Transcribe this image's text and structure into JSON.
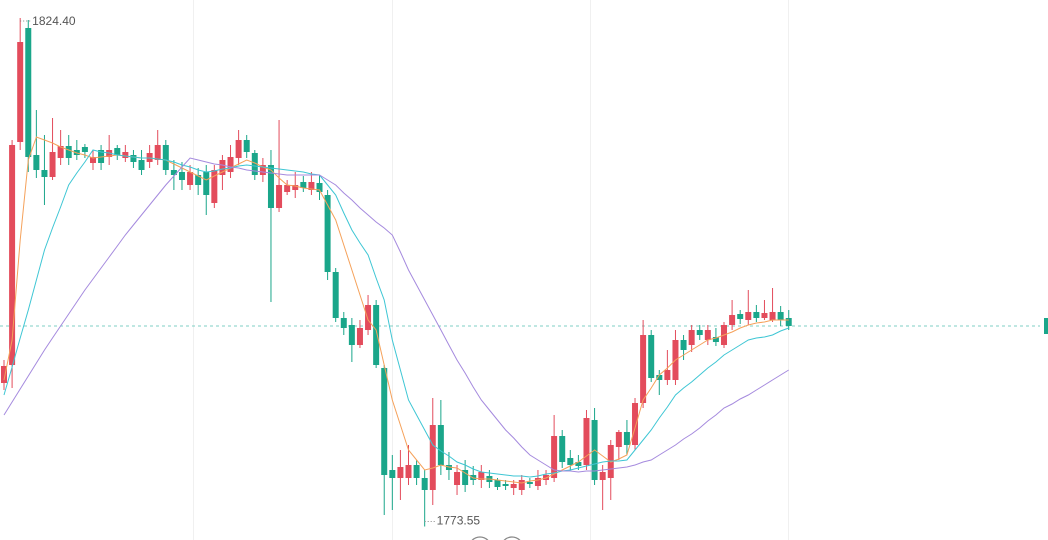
{
  "chart_data": {
    "type": "candlestick",
    "categories": [
      null,
      null,
      null,
      null,
      null,
      null,
      null,
      null,
      null,
      null,
      null,
      null,
      null,
      null,
      null,
      null,
      null,
      null,
      null,
      null,
      null,
      null,
      null,
      null,
      null,
      null,
      null,
      null,
      null,
      null,
      null,
      null,
      null,
      null,
      null,
      null,
      null,
      null,
      null,
      null,
      null,
      null,
      null,
      null,
      null,
      null,
      null,
      null,
      null,
      null,
      null,
      null,
      null,
      null,
      null,
      null,
      null,
      null,
      null,
      null,
      null,
      null,
      null,
      null,
      null,
      null,
      null,
      null,
      null,
      null,
      null,
      null,
      null,
      null,
      null,
      null,
      null,
      null,
      null,
      null,
      null,
      null,
      null,
      null,
      null,
      null,
      null,
      null,
      null,
      null,
      null,
      null,
      null,
      null,
      null,
      null,
      null,
      null
    ],
    "open": [
      1787.9,
      1789.7,
      1812.0,
      1823.4,
      1810.7,
      1809.2,
      1808.5,
      1810.4,
      1811.6,
      1811.2,
      1811.5,
      1809.9,
      1811.2,
      1810.5,
      1811.4,
      1810.4,
      1810.7,
      1810.2,
      1810.0,
      1810.2,
      1811.7,
      1809.2,
      1809.0,
      1807.7,
      1808.7,
      1809.0,
      1805.9,
      1808.7,
      1809.0,
      1810.4,
      1812.2,
      1810.9,
      1808.7,
      1809.7,
      1805.4,
      1807.0,
      1807.2,
      1808.0,
      1807.2,
      1807.9,
      1806.7,
      1799.0,
      1794.4,
      1793.7,
      1791.7,
      1793.2,
      1795.7,
      1789.4,
      1779.2,
      1778.4,
      1778.4,
      1779.7,
      1778.4,
      1777.2,
      1783.7,
      1779.7,
      1777.7,
      1779.2,
      1778.7,
      1778.2,
      1778.6,
      1778.2,
      1777.8,
      1777.4,
      1777.2,
      1778.0,
      1777.6,
      1778.2,
      1778.4,
      1782.6,
      1780.4,
      1780.0,
      1779.7,
      1784.2,
      1778.2,
      1778.4,
      1781.5,
      1783.0,
      1781.7,
      1785.9,
      1792.7,
      1788.7,
      1788.2,
      1788.2,
      1792.2,
      1791.7,
      1793.2,
      1792.2,
      1792.5,
      1791.7,
      1793.7,
      1794.8,
      1794.2,
      1795.0,
      1794.4,
      1794.2,
      1795.0,
      1794.4
    ],
    "high": [
      1790.2,
      1812.2,
      1824.4,
      1824.2,
      1815.2,
      1812.7,
      1814.4,
      1813.2,
      1812.7,
      1812.2,
      1811.8,
      1811.2,
      1811.7,
      1812.7,
      1811.7,
      1811.7,
      1811.2,
      1811.2,
      1811.7,
      1813.2,
      1812.2,
      1810.2,
      1810.0,
      1809.7,
      1809.4,
      1809.7,
      1809.7,
      1810.7,
      1811.7,
      1813.2,
      1812.7,
      1811.2,
      1810.4,
      1811.2,
      1814.2,
      1808.2,
      1809.0,
      1808.6,
      1809.0,
      1808.7,
      1807.2,
      1799.4,
      1795.0,
      1794.4,
      1794.2,
      1796.7,
      1796.2,
      1789.7,
      1780.7,
      1781.2,
      1781.7,
      1780.2,
      1779.2,
      1786.4,
      1786.2,
      1781.0,
      1779.7,
      1780.2,
      1779.6,
      1779.7,
      1779.2,
      1778.4,
      1778.2,
      1778.2,
      1778.7,
      1778.4,
      1779.2,
      1779.2,
      1784.7,
      1783.2,
      1781.2,
      1780.7,
      1785.2,
      1785.4,
      1779.7,
      1782.2,
      1783.2,
      1784.2,
      1786.4,
      1794.2,
      1793.2,
      1789.2,
      1791.2,
      1793.2,
      1792.7,
      1793.7,
      1793.7,
      1793.7,
      1793.4,
      1794.0,
      1796.2,
      1795.2,
      1797.2,
      1795.7,
      1796.2,
      1797.4,
      1795.6,
      1795.2
    ],
    "low": [
      1787.2,
      1787.4,
      1811.2,
      1809.0,
      1808.4,
      1805.7,
      1808.2,
      1809.7,
      1809.7,
      1810.2,
      1810.4,
      1809.2,
      1809.2,
      1809.7,
      1810.2,
      1810.0,
      1809.4,
      1808.7,
      1809.4,
      1809.7,
      1808.7,
      1807.2,
      1807.2,
      1807.2,
      1806.7,
      1804.7,
      1805.4,
      1807.2,
      1808.4,
      1809.7,
      1810.4,
      1808.2,
      1808.0,
      1796.0,
      1805.0,
      1806.7,
      1806.4,
      1807.0,
      1806.7,
      1806.2,
      1798.2,
      1794.0,
      1792.7,
      1790.0,
      1791.4,
      1792.7,
      1789.4,
      1774.7,
      1775.2,
      1776.2,
      1777.7,
      1777.7,
      1773.55,
      1775.7,
      1778.7,
      1778.2,
      1776.7,
      1777.0,
      1777.7,
      1777.4,
      1777.4,
      1777.2,
      1777.2,
      1776.7,
      1776.7,
      1777.4,
      1777.2,
      1777.7,
      1778.0,
      1779.4,
      1779.2,
      1779.2,
      1779.2,
      1777.7,
      1775.2,
      1776.2,
      1780.2,
      1780.7,
      1781.2,
      1785.4,
      1788.0,
      1786.7,
      1787.7,
      1787.7,
      1790.2,
      1791.0,
      1792.2,
      1791.7,
      1791.6,
      1791.4,
      1793.2,
      1793.8,
      1793.7,
      1794.0,
      1794.2,
      1794.0,
      1793.6,
      1793.2
    ],
    "close": [
      1789.6,
      1811.7,
      1822.0,
      1810.5,
      1809.2,
      1808.5,
      1811.0,
      1811.6,
      1810.4,
      1810.7,
      1811.0,
      1810.5,
      1809.9,
      1811.2,
      1810.7,
      1811.0,
      1810.0,
      1809.2,
      1810.9,
      1811.7,
      1809.2,
      1808.7,
      1808.2,
      1809.0,
      1807.7,
      1806.7,
      1809.2,
      1810.2,
      1810.5,
      1812.2,
      1811.0,
      1808.7,
      1809.7,
      1805.4,
      1807.7,
      1807.7,
      1807.7,
      1807.4,
      1808.0,
      1807.0,
      1799.0,
      1794.4,
      1793.4,
      1791.7,
      1793.4,
      1795.7,
      1789.7,
      1778.7,
      1778.4,
      1779.5,
      1779.7,
      1778.4,
      1777.2,
      1783.7,
      1779.7,
      1779.2,
      1779.0,
      1777.7,
      1778.2,
      1779.0,
      1778.0,
      1777.5,
      1777.6,
      1777.8,
      1778.2,
      1777.8,
      1778.4,
      1778.7,
      1782.6,
      1780.0,
      1779.7,
      1779.6,
      1784.4,
      1778.2,
      1779.0,
      1781.7,
      1783.0,
      1781.7,
      1785.9,
      1792.7,
      1788.4,
      1788.2,
      1789.2,
      1792.2,
      1791.2,
      1793.2,
      1792.7,
      1793.2,
      1792.0,
      1793.7,
      1794.7,
      1794.3,
      1795.0,
      1794.4,
      1794.9,
      1795.0,
      1794.2,
      1793.6
    ],
    "up_color": "#e34c5c",
    "down_color": "#1aa68a",
    "ylim": [
      1772.2,
      1826.2
    ],
    "lines": [
      {
        "color": "#f5a15a",
        "values": [
          1788.2,
          1792.2,
          1802.2,
          1810.2,
          1812.5,
          1812.2,
          1811.9,
          1811.5,
          1811.2,
          1810.9,
          1810.7,
          1810.4,
          1810.5,
          1810.6,
          1810.7,
          1810.6,
          1810.5,
          1810.4,
          1810.4,
          1810.3,
          1810.2,
          1809.8,
          1809.4,
          1809.0,
          1808.6,
          1808.2,
          1808.6,
          1809.0,
          1809.4,
          1809.8,
          1810.2,
          1809.9,
          1809.5,
          1809.2,
          1808.4,
          1807.7,
          1807.6,
          1807.4,
          1807.3,
          1807.2,
          1805.7,
          1804.2,
          1801.7,
          1799.2,
          1796.7,
          1794.2,
          1793.2,
          1789.7,
          1786.2,
          1783.7,
          1781.2,
          1780.2,
          1779.2,
          1779.4,
          1779.7,
          1779.5,
          1779.4,
          1778.9,
          1778.4,
          1778.3,
          1778.3,
          1778.2,
          1778.1,
          1778.0,
          1777.9,
          1778.1,
          1778.2,
          1778.4,
          1778.8,
          1779.2,
          1779.6,
          1780.0,
          1780.6,
          1781.2,
          1780.6,
          1780.0,
          1780.3,
          1780.7,
          1783.4,
          1786.2,
          1787.4,
          1788.7,
          1789.4,
          1790.2,
          1790.7,
          1791.2,
          1791.7,
          1792.2,
          1792.4,
          1792.7,
          1793.0,
          1793.4,
          1793.7,
          1793.9,
          1794.0,
          1794.2,
          1794.2,
          1794.2
        ]
      },
      {
        "color": "#3ec6d4",
        "values": [
          1786.7,
          1789.5,
          1792.4,
          1795.2,
          1798.2,
          1801.2,
          1803.4,
          1805.5,
          1807.7,
          1808.9,
          1810.0,
          1811.2,
          1811.0,
          1810.9,
          1810.7,
          1810.6,
          1810.5,
          1810.4,
          1810.4,
          1810.3,
          1810.2,
          1810.0,
          1809.7,
          1809.5,
          1809.2,
          1809.0,
          1809.1,
          1809.3,
          1809.4,
          1809.6,
          1809.7,
          1809.6,
          1809.5,
          1809.4,
          1809.3,
          1809.2,
          1809.1,
          1809.0,
          1808.8,
          1808.7,
          1807.7,
          1806.7,
          1804.9,
          1803.2,
          1801.9,
          1800.7,
          1798.4,
          1796.2,
          1792.2,
          1789.2,
          1786.2,
          1784.7,
          1783.2,
          1781.7,
          1781.1,
          1780.6,
          1780.0,
          1779.7,
          1779.3,
          1779.0,
          1778.9,
          1778.8,
          1778.7,
          1778.6,
          1778.6,
          1778.5,
          1778.6,
          1778.8,
          1778.9,
          1779.1,
          1779.2,
          1779.4,
          1779.6,
          1779.8,
          1780.0,
          1780.1,
          1780.1,
          1780.2,
          1781.2,
          1782.2,
          1783.2,
          1784.4,
          1785.5,
          1786.7,
          1787.4,
          1788.0,
          1788.7,
          1789.4,
          1790.0,
          1790.7,
          1791.2,
          1791.7,
          1792.2,
          1792.4,
          1792.5,
          1792.7,
          1793.1,
          1793.4
        ]
      },
      {
        "color": "#a58ade",
        "values": [
          1784.7,
          1786.0,
          1787.3,
          1788.6,
          1789.9,
          1791.2,
          1792.4,
          1793.6,
          1794.8,
          1796.0,
          1797.2,
          1798.3,
          1799.4,
          1800.5,
          1801.6,
          1802.7,
          1803.7,
          1804.7,
          1805.7,
          1806.7,
          1807.7,
          1808.6,
          1809.5,
          1810.4,
          1810.2,
          1810.0,
          1809.8,
          1809.7,
          1809.5,
          1809.4,
          1809.2,
          1809.1,
          1809.0,
          1808.9,
          1808.8,
          1808.7,
          1808.7,
          1808.7,
          1808.7,
          1808.7,
          1808.2,
          1807.7,
          1806.9,
          1806.2,
          1805.4,
          1804.7,
          1804.0,
          1803.4,
          1802.7,
          1801.0,
          1799.2,
          1797.7,
          1796.2,
          1794.7,
          1793.2,
          1791.7,
          1790.2,
          1788.9,
          1787.5,
          1786.2,
          1785.2,
          1784.2,
          1783.2,
          1782.4,
          1781.5,
          1780.7,
          1780.2,
          1779.7,
          1779.2,
          1779.1,
          1779.1,
          1779.0,
          1779.1,
          1779.1,
          1779.2,
          1779.3,
          1779.4,
          1779.5,
          1779.7,
          1780.0,
          1780.2,
          1780.7,
          1781.2,
          1781.7,
          1782.3,
          1782.8,
          1783.4,
          1784.1,
          1784.7,
          1785.4,
          1785.8,
          1786.3,
          1786.7,
          1787.2,
          1787.7,
          1788.2,
          1788.7,
          1789.2
        ]
      }
    ],
    "last_price": 1793.6,
    "annotations": [
      "1824.40",
      "1773.55"
    ]
  }
}
